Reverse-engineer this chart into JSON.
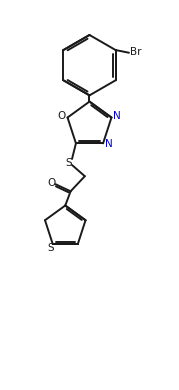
{
  "bg_color": "#ffffff",
  "line_color": "#1a1a1a",
  "label_color": "#1a1a1a",
  "N_color": "#0000cd",
  "S_color": "#1a1a1a",
  "O_color": "#1a1a1a",
  "Br_color": "#1a1a1a",
  "figsize": [
    1.79,
    3.9
  ],
  "dpi": 100,
  "xlim": [
    0,
    10
  ],
  "ylim": [
    0,
    21.78
  ]
}
